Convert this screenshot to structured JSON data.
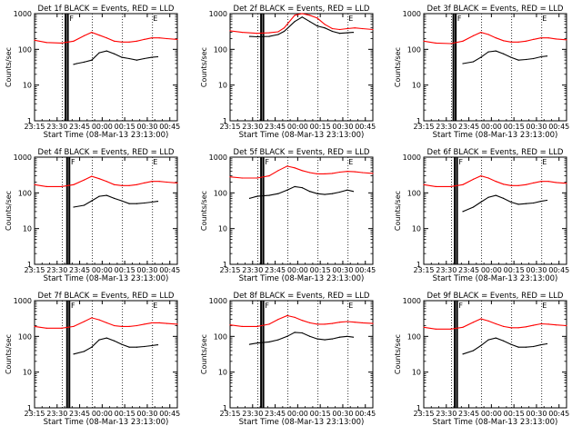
{
  "time_ticks": [
    "23:15",
    "23:30",
    "23:45",
    "00:00",
    "00:15",
    "00:30",
    "00:45"
  ],
  "y_ticks": [
    "1",
    "10",
    "100",
    "1000"
  ],
  "xlabel": "Start Time (08-Mar-13 23:13:00)",
  "ylabel": "Counts/sec",
  "colors": {
    "events": "#000000",
    "lld": "#ff0000"
  },
  "chart_data": [
    {
      "type": "line",
      "title": "Det 1f BLACK = Events, RED = LLD",
      "xlim_min": [
        2,
        97
      ],
      "ylim": [
        1,
        1000
      ],
      "log_y": true,
      "flag_markers": [
        "F",
        "E"
      ],
      "series": [
        {
          "name": "BLACK",
          "x_min": [
            28,
            30,
            35,
            40,
            45,
            50,
            55,
            60,
            65,
            70,
            75,
            80,
            84
          ],
          "values": [
            38,
            40,
            44,
            50,
            80,
            90,
            75,
            60,
            55,
            50,
            55,
            60,
            62
          ]
        },
        {
          "name": "RED",
          "x_min": [
            2,
            10,
            20,
            28,
            35,
            40,
            45,
            50,
            55,
            60,
            65,
            70,
            75,
            80,
            85,
            90,
            97
          ],
          "values": [
            180,
            155,
            150,
            170,
            240,
            300,
            250,
            210,
            170,
            160,
            160,
            170,
            190,
            210,
            210,
            200,
            190
          ]
        }
      ]
    },
    {
      "type": "line",
      "title": "Det 2f BLACK = Events, RED = LLD",
      "xlim_min": [
        2,
        97
      ],
      "ylim": [
        1,
        1000
      ],
      "log_y": true,
      "flag_markers": [
        "E"
      ],
      "series": [
        {
          "name": "BLACK",
          "x_min": [
            15,
            20,
            28,
            34,
            38,
            45,
            50,
            55,
            60,
            65,
            70,
            75,
            80,
            84
          ],
          "values": [
            230,
            225,
            230,
            260,
            320,
            600,
            800,
            600,
            450,
            400,
            320,
            280,
            290,
            300
          ]
        },
        {
          "name": "RED",
          "x_min": [
            2,
            10,
            20,
            28,
            34,
            38,
            45,
            50,
            55,
            60,
            65,
            70,
            75,
            80,
            85,
            90,
            97
          ],
          "values": [
            330,
            300,
            280,
            290,
            310,
            400,
            900,
            1000,
            900,
            750,
            500,
            380,
            360,
            380,
            400,
            380,
            360
          ]
        }
      ]
    },
    {
      "type": "line",
      "title": "Det 3f BLACK = Events, RED = LLD",
      "xlim_min": [
        2,
        97
      ],
      "ylim": [
        1,
        1000
      ],
      "log_y": true,
      "flag_markers": [
        "F",
        "E"
      ],
      "series": [
        {
          "name": "BLACK",
          "x_min": [
            28,
            35,
            40,
            45,
            50,
            55,
            60,
            65,
            70,
            75,
            80,
            84
          ],
          "values": [
            40,
            45,
            60,
            85,
            90,
            75,
            60,
            50,
            52,
            55,
            62,
            65
          ]
        },
        {
          "name": "RED",
          "x_min": [
            2,
            10,
            20,
            28,
            35,
            40,
            45,
            50,
            55,
            60,
            65,
            70,
            75,
            80,
            85,
            90,
            97
          ],
          "values": [
            170,
            150,
            145,
            170,
            240,
            300,
            260,
            210,
            175,
            160,
            160,
            170,
            190,
            210,
            210,
            195,
            185
          ]
        }
      ]
    },
    {
      "type": "line",
      "title": "Det 4f BLACK = Events, RED = LLD",
      "xlim_min": [
        2,
        97
      ],
      "ylim": [
        1,
        1000
      ],
      "log_y": true,
      "flag_markers": [
        "F",
        "E"
      ],
      "series": [
        {
          "name": "BLACK",
          "x_min": [
            28,
            35,
            40,
            45,
            50,
            55,
            60,
            65,
            70,
            75,
            80,
            84
          ],
          "values": [
            40,
            45,
            60,
            80,
            85,
            70,
            60,
            50,
            50,
            52,
            55,
            58
          ]
        },
        {
          "name": "RED",
          "x_min": [
            2,
            10,
            20,
            28,
            35,
            40,
            45,
            50,
            55,
            60,
            65,
            70,
            75,
            80,
            85,
            90,
            97
          ],
          "values": [
            170,
            150,
            150,
            170,
            230,
            290,
            250,
            210,
            170,
            160,
            160,
            170,
            190,
            210,
            210,
            200,
            190
          ]
        }
      ]
    },
    {
      "type": "line",
      "title": "Det 5f BLACK = Events, RED = LLD",
      "xlim_min": [
        2,
        97
      ],
      "ylim": [
        1,
        1000
      ],
      "log_y": true,
      "flag_markers": [
        "F",
        "E"
      ],
      "series": [
        {
          "name": "BLACK",
          "x_min": [
            15,
            20,
            28,
            34,
            40,
            45,
            50,
            55,
            60,
            65,
            70,
            75,
            80,
            84
          ],
          "values": [
            70,
            80,
            85,
            95,
            120,
            150,
            140,
            110,
            95,
            90,
            95,
            105,
            120,
            110
          ]
        },
        {
          "name": "RED",
          "x_min": [
            2,
            10,
            20,
            28,
            34,
            40,
            45,
            50,
            55,
            60,
            65,
            70,
            75,
            80,
            85,
            90,
            97
          ],
          "values": [
            280,
            260,
            260,
            300,
            420,
            560,
            500,
            420,
            370,
            340,
            340,
            350,
            380,
            400,
            390,
            370,
            350
          ]
        }
      ]
    },
    {
      "type": "line",
      "title": "Det 6f BLACK = Events, RED = LLD",
      "xlim_min": [
        2,
        97
      ],
      "ylim": [
        1,
        1000
      ],
      "log_y": true,
      "flag_markers": [
        "F",
        "E"
      ],
      "series": [
        {
          "name": "BLACK",
          "x_min": [
            28,
            35,
            40,
            45,
            50,
            55,
            60,
            65,
            70,
            75,
            80,
            84
          ],
          "values": [
            30,
            40,
            55,
            75,
            85,
            70,
            55,
            48,
            50,
            52,
            58,
            62
          ]
        },
        {
          "name": "RED",
          "x_min": [
            2,
            10,
            20,
            28,
            35,
            40,
            45,
            50,
            55,
            60,
            65,
            70,
            75,
            80,
            85,
            90,
            97
          ],
          "values": [
            170,
            150,
            150,
            170,
            240,
            300,
            260,
            210,
            175,
            160,
            160,
            170,
            190,
            210,
            210,
            195,
            185
          ]
        }
      ]
    },
    {
      "type": "line",
      "title": "Det 7f BLACK = Events, RED = LLD",
      "xlim_min": [
        2,
        97
      ],
      "ylim": [
        1,
        1000
      ],
      "log_y": true,
      "flag_markers": [
        "F",
        "E"
      ],
      "series": [
        {
          "name": "BLACK",
          "x_min": [
            28,
            35,
            40,
            45,
            50,
            55,
            60,
            65,
            70,
            75,
            80,
            84
          ],
          "values": [
            32,
            38,
            50,
            80,
            90,
            75,
            60,
            50,
            50,
            52,
            55,
            58
          ]
        },
        {
          "name": "RED",
          "x_min": [
            2,
            10,
            20,
            28,
            35,
            40,
            45,
            50,
            55,
            60,
            65,
            70,
            75,
            80,
            85,
            90,
            97
          ],
          "values": [
            190,
            170,
            170,
            190,
            260,
            330,
            290,
            240,
            200,
            190,
            190,
            200,
            220,
            240,
            240,
            230,
            220
          ]
        }
      ]
    },
    {
      "type": "line",
      "title": "Det 8f BLACK = Events, RED = LLD",
      "xlim_min": [
        2,
        97
      ],
      "ylim": [
        1,
        1000
      ],
      "log_y": true,
      "flag_markers": [
        "F",
        "E"
      ],
      "series": [
        {
          "name": "BLACK",
          "x_min": [
            15,
            20,
            28,
            34,
            40,
            45,
            50,
            55,
            60,
            65,
            70,
            75,
            80,
            84
          ],
          "values": [
            60,
            65,
            70,
            80,
            100,
            130,
            125,
            100,
            85,
            80,
            85,
            95,
            100,
            95
          ]
        },
        {
          "name": "RED",
          "x_min": [
            2,
            10,
            20,
            28,
            34,
            40,
            45,
            50,
            55,
            60,
            65,
            70,
            75,
            80,
            85,
            90,
            97
          ],
          "values": [
            210,
            190,
            190,
            220,
            300,
            380,
            340,
            280,
            240,
            220,
            220,
            230,
            250,
            260,
            250,
            240,
            230
          ]
        }
      ]
    },
    {
      "type": "line",
      "title": "Det 9f BLACK = Events, RED = LLD",
      "xlim_min": [
        2,
        97
      ],
      "ylim": [
        1,
        1000
      ],
      "log_y": true,
      "flag_markers": [
        "F",
        "E"
      ],
      "series": [
        {
          "name": "BLACK",
          "x_min": [
            28,
            35,
            40,
            45,
            50,
            55,
            60,
            65,
            70,
            75,
            80,
            84
          ],
          "values": [
            32,
            40,
            55,
            80,
            90,
            75,
            60,
            50,
            50,
            52,
            58,
            62
          ]
        },
        {
          "name": "RED",
          "x_min": [
            2,
            10,
            20,
            28,
            35,
            40,
            45,
            50,
            55,
            60,
            65,
            70,
            75,
            80,
            85,
            90,
            97
          ],
          "values": [
            180,
            160,
            160,
            180,
            250,
            310,
            270,
            225,
            190,
            175,
            175,
            185,
            205,
            225,
            220,
            210,
            200
          ]
        }
      ]
    }
  ]
}
